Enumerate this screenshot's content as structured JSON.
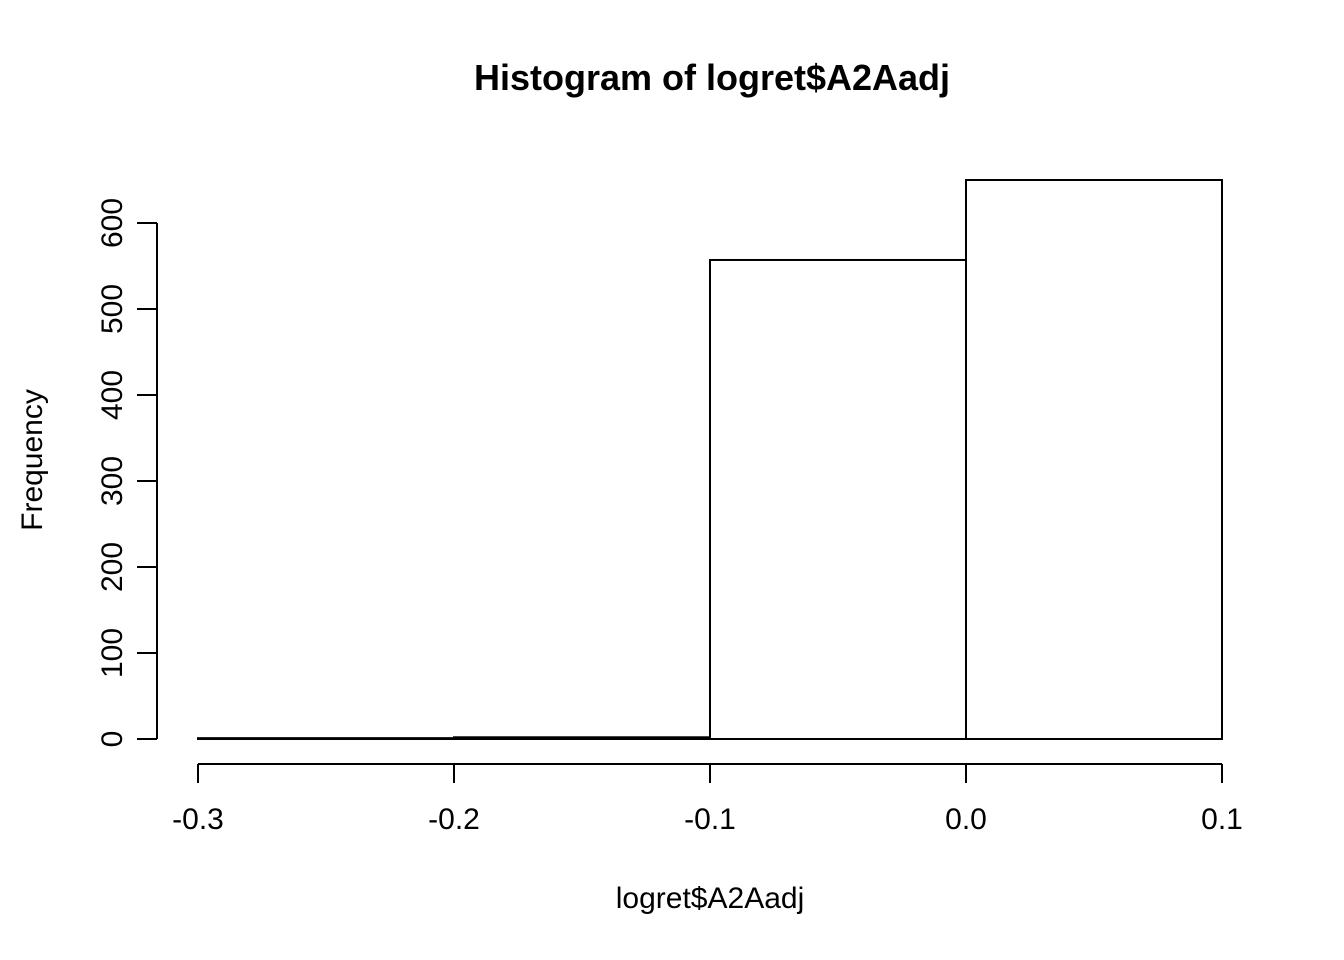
{
  "chart_data": {
    "type": "bar",
    "subtype": "histogram",
    "title": "Histogram of logret$A2Aadj",
    "xlabel": "logret$A2Aadj",
    "ylabel": "Frequency",
    "bins": [
      {
        "from": -0.3,
        "to": -0.2,
        "count": 1
      },
      {
        "from": -0.2,
        "to": -0.1,
        "count": 2
      },
      {
        "from": -0.1,
        "to": 0.0,
        "count": 557
      },
      {
        "from": 0.0,
        "to": 0.1,
        "count": 650
      }
    ],
    "xlim": [
      -0.3,
      0.1
    ],
    "ylim": [
      0,
      650
    ],
    "x_ticks": [
      {
        "value": -0.3,
        "label": "-0.3"
      },
      {
        "value": -0.2,
        "label": "-0.2"
      },
      {
        "value": -0.1,
        "label": "-0.1"
      },
      {
        "value": 0.0,
        "label": "0.0"
      },
      {
        "value": 0.1,
        "label": "0.1"
      }
    ],
    "y_ticks": [
      {
        "value": 0,
        "label": "0"
      },
      {
        "value": 100,
        "label": "100"
      },
      {
        "value": 200,
        "label": "200"
      },
      {
        "value": 300,
        "label": "300"
      },
      {
        "value": 400,
        "label": "400"
      },
      {
        "value": 500,
        "label": "500"
      },
      {
        "value": 600,
        "label": "600"
      }
    ],
    "y_tick_max": 600,
    "grid": false,
    "legend": false,
    "colors": {
      "background": "#ffffff",
      "bar_fill": "#ffffff",
      "line": "#000000",
      "text": "#000000"
    }
  }
}
